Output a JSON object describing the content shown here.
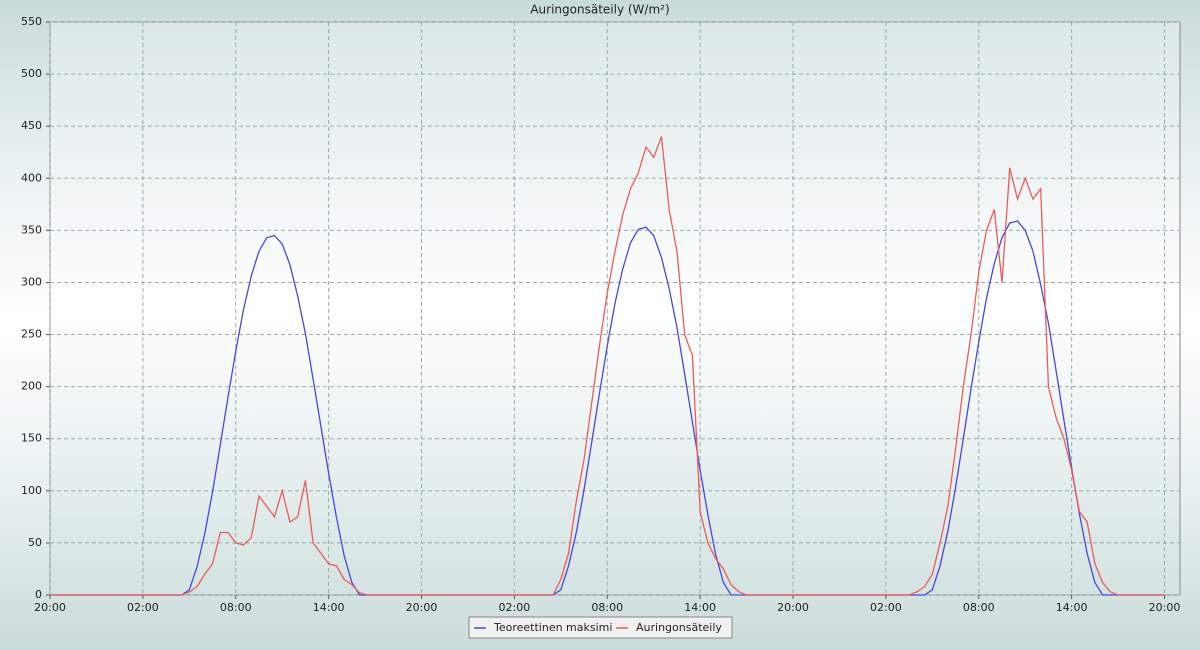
{
  "chart_data": {
    "type": "line",
    "title": "Auringonsäteily (W/m²)",
    "x": [
      0,
      0.5,
      1,
      1.5,
      2,
      2.5,
      3,
      3.5,
      4,
      4.5,
      5,
      5.5,
      6,
      6.5,
      7,
      7.5,
      8,
      8.5,
      9,
      9.5,
      10,
      10.5,
      11,
      11.5,
      12,
      12.5,
      13,
      13.5,
      14,
      14.5,
      15,
      15.5,
      16,
      16.5,
      17,
      17.5,
      18,
      18.5,
      19,
      19.5,
      20,
      20.5,
      21,
      21.5,
      22,
      22.5,
      23,
      23.5,
      24,
      24.5,
      25,
      25.5,
      26,
      26.5,
      27,
      27.5,
      28,
      28.5,
      29,
      29.5,
      30,
      30.5,
      31,
      31.5,
      32,
      32.5,
      33,
      33.5,
      34,
      34.5,
      35,
      35.5,
      36,
      36.5,
      37,
      37.5,
      38,
      38.5,
      39,
      39.5,
      40,
      40.5,
      41,
      41.5,
      42,
      42.5,
      43,
      43.5,
      44,
      44.5,
      45,
      45.5,
      46,
      46.5,
      47,
      47.5,
      48,
      48.5,
      49,
      49.5,
      50,
      50.5,
      51,
      51.5,
      52,
      52.5,
      53,
      53.5,
      54,
      54.5,
      55,
      55.5,
      56,
      56.5,
      57,
      57.5,
      58,
      58.5,
      59,
      59.5,
      60,
      60.5,
      61,
      61.5,
      62,
      62.5,
      63,
      63.5,
      64,
      64.5,
      65,
      65.5,
      66,
      66.5,
      67,
      67.5,
      68,
      68.5,
      69,
      69.5,
      70,
      70.5,
      71,
      71.5,
      72
    ],
    "series": [
      {
        "name": "Teoreettinen maksimi",
        "color": "#4848dc",
        "values": [
          0,
          0,
          0,
          0,
          0,
          0,
          0,
          0,
          0,
          0,
          0,
          0,
          0,
          0,
          0,
          0,
          0,
          0,
          5,
          27,
          59,
          99,
          144,
          190,
          234,
          274,
          306,
          330,
          343,
          345,
          337,
          317,
          287,
          251,
          207,
          162,
          117,
          75,
          38,
          12,
          0,
          0,
          0,
          0,
          0,
          0,
          0,
          0,
          0,
          0,
          0,
          0,
          0,
          0,
          0,
          0,
          0,
          0,
          0,
          0,
          0,
          0,
          0,
          0,
          0,
          0,
          5,
          28,
          60,
          101,
          147,
          194,
          239,
          280,
          313,
          338,
          351,
          353,
          345,
          324,
          294,
          257,
          212,
          166,
          120,
          77,
          39,
          12,
          0,
          0,
          0,
          0,
          0,
          0,
          0,
          0,
          0,
          0,
          0,
          0,
          0,
          0,
          0,
          0,
          0,
          0,
          0,
          0,
          0,
          0,
          0,
          0,
          0,
          0,
          5,
          28,
          61,
          103,
          150,
          198,
          243,
          285,
          318,
          343,
          357,
          359,
          350,
          330,
          298,
          261,
          215,
          168,
          122,
          78,
          40,
          12,
          0,
          0,
          0,
          0,
          0,
          0,
          0,
          0,
          0
        ]
      },
      {
        "name": "Auringonsäteily",
        "color": "#ee5a5a",
        "values": [
          0,
          0,
          0,
          0,
          0,
          0,
          0,
          0,
          0,
          0,
          0,
          0,
          0,
          0,
          0,
          0,
          0,
          0,
          3,
          8,
          20,
          30,
          60,
          60,
          50,
          48,
          55,
          95,
          85,
          75,
          100,
          70,
          75,
          110,
          50,
          40,
          30,
          28,
          15,
          10,
          2,
          0,
          0,
          0,
          0,
          0,
          0,
          0,
          0,
          0,
          0,
          0,
          0,
          0,
          0,
          0,
          0,
          0,
          0,
          0,
          0,
          0,
          0,
          0,
          0,
          0,
          15,
          40,
          90,
          130,
          185,
          240,
          290,
          330,
          365,
          390,
          405,
          430,
          420,
          440,
          370,
          330,
          250,
          230,
          80,
          50,
          35,
          25,
          10,
          3,
          0,
          0,
          0,
          0,
          0,
          0,
          0,
          0,
          0,
          0,
          0,
          0,
          0,
          0,
          0,
          0,
          0,
          0,
          0,
          0,
          0,
          0,
          3,
          8,
          20,
          50,
          85,
          140,
          200,
          250,
          310,
          350,
          370,
          300,
          410,
          380,
          400,
          380,
          390,
          200,
          170,
          150,
          120,
          80,
          70,
          30,
          12,
          3,
          0,
          0,
          0,
          0,
          0,
          0,
          0
        ]
      }
    ],
    "xlim": [
      0,
      73
    ],
    "xticks": [
      {
        "value": 0,
        "label": "20:00"
      },
      {
        "value": 6,
        "label": "02:00"
      },
      {
        "value": 12,
        "label": "08:00"
      },
      {
        "value": 18,
        "label": "14:00"
      },
      {
        "value": 24,
        "label": "20:00"
      },
      {
        "value": 30,
        "label": "02:00"
      },
      {
        "value": 36,
        "label": "08:00"
      },
      {
        "value": 42,
        "label": "14:00"
      },
      {
        "value": 48,
        "label": "20:00"
      },
      {
        "value": 54,
        "label": "02:00"
      },
      {
        "value": 60,
        "label": "08:00"
      },
      {
        "value": 66,
        "label": "14:00"
      },
      {
        "value": 72,
        "label": "20:00"
      }
    ],
    "ylim": [
      0,
      550
    ],
    "yticks": [
      0,
      50,
      100,
      150,
      200,
      250,
      300,
      350,
      400,
      450,
      500,
      550
    ],
    "grid": true
  }
}
